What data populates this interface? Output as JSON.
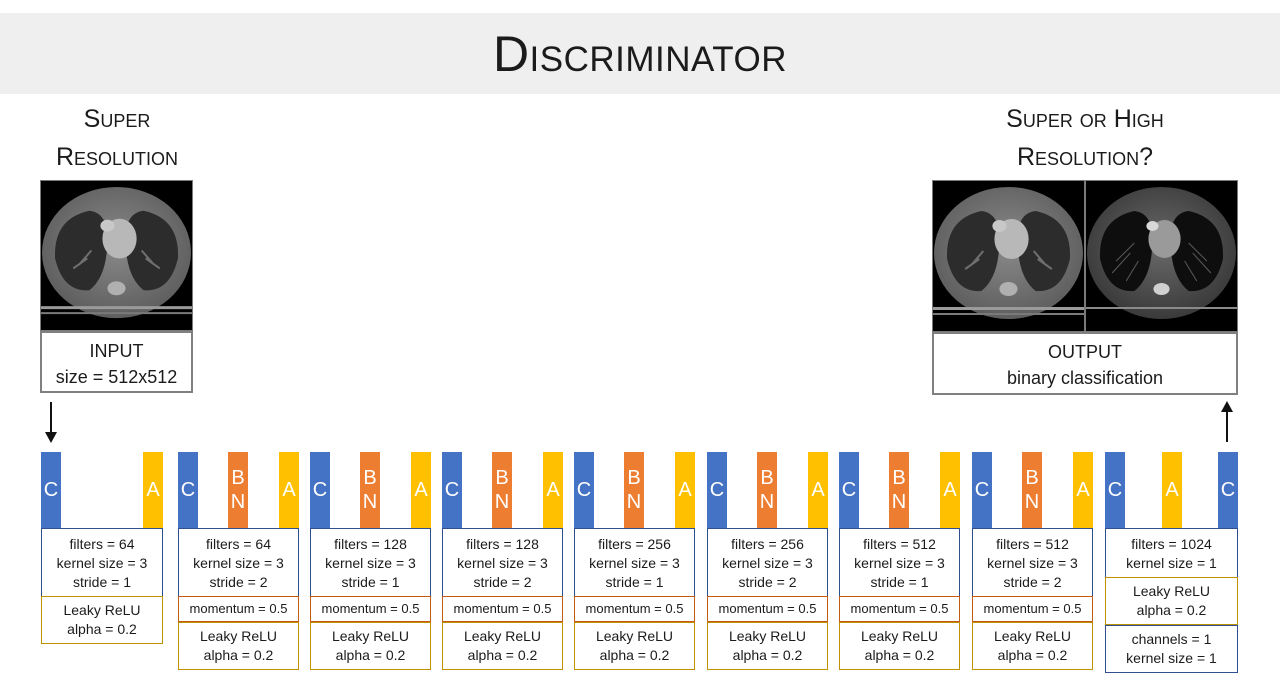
{
  "title": "Discriminator",
  "input_heading": [
    "Super",
    "Resolution"
  ],
  "output_heading": [
    "Super or High",
    "Resolution?"
  ],
  "input_box": [
    "INPUT",
    "size = 512x512"
  ],
  "output_box": [
    "OUTPUT",
    "binary classification"
  ],
  "blocks": [
    {
      "bars": [
        "C",
        "A"
      ],
      "conv": [
        "filters = 64",
        "kernel size = 3",
        "stride = 1"
      ],
      "activation": [
        "Leaky ReLU",
        "alpha = 0.2"
      ]
    },
    {
      "bars": [
        "C",
        "BN",
        "A"
      ],
      "conv": [
        "filters = 64",
        "kernel size = 3",
        "stride = 2"
      ],
      "batchnorm": "momentum = 0.5",
      "activation": [
        "Leaky ReLU",
        "alpha = 0.2"
      ]
    },
    {
      "bars": [
        "C",
        "BN",
        "A"
      ],
      "conv": [
        "filters = 128",
        "kernel size = 3",
        "stride = 1"
      ],
      "batchnorm": "momentum = 0.5",
      "activation": [
        "Leaky ReLU",
        "alpha = 0.2"
      ]
    },
    {
      "bars": [
        "C",
        "BN",
        "A"
      ],
      "conv": [
        "filters = 128",
        "kernel size = 3",
        "stride = 2"
      ],
      "batchnorm": "momentum = 0.5",
      "activation": [
        "Leaky ReLU",
        "alpha = 0.2"
      ]
    },
    {
      "bars": [
        "C",
        "BN",
        "A"
      ],
      "conv": [
        "filters = 256",
        "kernel size = 3",
        "stride = 1"
      ],
      "batchnorm": "momentum = 0.5",
      "activation": [
        "Leaky ReLU",
        "alpha = 0.2"
      ]
    },
    {
      "bars": [
        "C",
        "BN",
        "A"
      ],
      "conv": [
        "filters = 256",
        "kernel size = 3",
        "stride = 2"
      ],
      "batchnorm": "momentum = 0.5",
      "activation": [
        "Leaky ReLU",
        "alpha = 0.2"
      ]
    },
    {
      "bars": [
        "C",
        "BN",
        "A"
      ],
      "conv": [
        "filters = 512",
        "kernel size = 3",
        "stride = 1"
      ],
      "batchnorm": "momentum = 0.5",
      "activation": [
        "Leaky ReLU",
        "alpha = 0.2"
      ]
    },
    {
      "bars": [
        "C",
        "BN",
        "A"
      ],
      "conv": [
        "filters = 512",
        "kernel size = 3",
        "stride = 2"
      ],
      "batchnorm": "momentum = 0.5",
      "activation": [
        "Leaky ReLU",
        "alpha = 0.2"
      ]
    },
    {
      "bars": [
        "C",
        "A",
        "C"
      ],
      "conv": [
        "filters = 1024",
        "kernel size = 1"
      ],
      "activation": [
        "Leaky ReLU",
        "alpha = 0.2"
      ],
      "final_conv": [
        "channels = 1",
        "kernel size = 1"
      ]
    }
  ],
  "colors": {
    "conv": "#4472c4",
    "batchnorm": "#ed7d31",
    "activation": "#ffc000",
    "title_band": "#efefef"
  }
}
